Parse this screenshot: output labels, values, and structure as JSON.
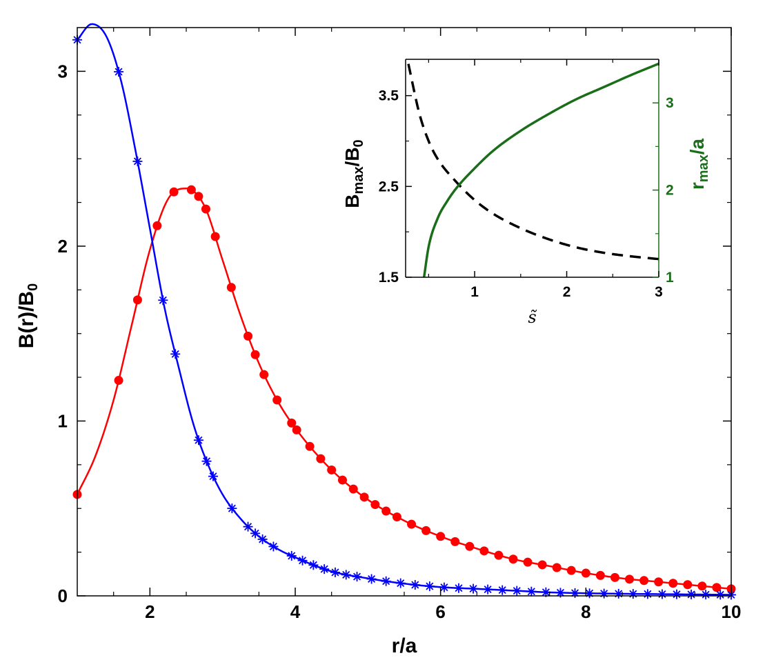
{
  "chart_data": [
    {
      "type": "line",
      "xlabel": "r/a",
      "ylabel": "B(r)/B",
      "ylabel_subscript": "0",
      "xlim": [
        1,
        10
      ],
      "ylim": [
        0,
        3.25
      ],
      "x_ticks": [
        2,
        4,
        6,
        8,
        10
      ],
      "y_ticks": [
        0,
        1,
        2,
        3
      ],
      "series": [
        {
          "color": "#ff0000",
          "marker": "circle",
          "x": [
            1.0,
            1.25,
            1.5,
            1.75,
            2.0,
            2.25,
            2.5,
            2.75,
            3.0,
            3.25,
            3.5,
            3.75,
            4.0,
            4.5,
            5.0,
            5.5,
            6.0,
            6.5,
            7.0,
            7.5,
            8.0,
            8.5,
            9.0,
            9.5,
            10.0
          ],
          "values": [
            0.58,
            0.8,
            1.12,
            1.55,
            1.98,
            2.27,
            2.33,
            2.23,
            1.92,
            1.6,
            1.33,
            1.12,
            0.96,
            0.72,
            0.55,
            0.43,
            0.34,
            0.27,
            0.21,
            0.17,
            0.13,
            0.1,
            0.08,
            0.06,
            0.04
          ],
          "marker_x": [
            1.0,
            1.57,
            1.83,
            2.1,
            2.33,
            2.57,
            2.67,
            2.77,
            2.9,
            3.12,
            3.35,
            3.45,
            3.57,
            3.75,
            3.95,
            4.02,
            4.2,
            4.35,
            4.5,
            4.65,
            4.8,
            4.95,
            5.1,
            5.25,
            5.4,
            5.6,
            5.8,
            6.0,
            6.2,
            6.4,
            6.6,
            6.8,
            7.0,
            7.2,
            7.4,
            7.6,
            7.8,
            8.0,
            8.2,
            8.4,
            8.6,
            8.8,
            9.0,
            9.2,
            9.4,
            9.6,
            9.8,
            10.0
          ]
        },
        {
          "color": "#0000ff",
          "marker": "asterisk",
          "x": [
            1.0,
            1.2,
            1.4,
            1.6,
            1.8,
            2.0,
            2.2,
            2.4,
            2.6,
            2.8,
            3.0,
            3.25,
            3.5,
            3.75,
            4.0,
            4.5,
            5.0,
            5.5,
            6.0,
            6.5,
            7.0,
            7.5,
            8.0,
            8.5,
            9.0,
            9.5,
            10.0
          ],
          "values": [
            3.18,
            3.27,
            3.2,
            2.95,
            2.55,
            2.1,
            1.65,
            1.3,
            0.98,
            0.75,
            0.58,
            0.44,
            0.34,
            0.27,
            0.22,
            0.14,
            0.1,
            0.07,
            0.05,
            0.04,
            0.03,
            0.02,
            0.015,
            0.012,
            0.01,
            0.008,
            0.006
          ],
          "marker_x": [
            1.0,
            1.57,
            1.83,
            2.18,
            2.35,
            2.67,
            2.78,
            2.87,
            3.13,
            3.35,
            3.45,
            3.55,
            3.7,
            3.95,
            4.1,
            4.25,
            4.4,
            4.55,
            4.7,
            4.85,
            5.05,
            5.25,
            5.45,
            5.65,
            5.85,
            6.05,
            6.25,
            6.45,
            6.65,
            6.85,
            7.05,
            7.25,
            7.45,
            7.65,
            7.85,
            8.05,
            8.25,
            8.45,
            8.65,
            8.85,
            9.05,
            9.25,
            9.45,
            9.65,
            9.85,
            10.0
          ]
        }
      ]
    },
    {
      "type": "line",
      "xlabel": "s̃",
      "ylabel_left": "B",
      "ylabel_left_sub1": "max",
      "ylabel_left_mid": "/B",
      "ylabel_left_sub2": "0",
      "ylabel_right": "r",
      "ylabel_right_sub": "max",
      "ylabel_right_tail": "/a",
      "xlim": [
        0.25,
        3
      ],
      "ylim_left": [
        1.5,
        3.9
      ],
      "ylim_right": [
        1,
        3.5
      ],
      "x_ticks": [
        1,
        2,
        3
      ],
      "y_ticks_left": [
        1.5,
        2.5,
        3.5
      ],
      "y_ticks_right": [
        1,
        2,
        3
      ],
      "right_axis_color": "#1a6e1a",
      "series": [
        {
          "axis": "left",
          "color": "#000000",
          "style": "dashed",
          "x": [
            0.28,
            0.4,
            0.5,
            0.6,
            0.8,
            1.0,
            1.2,
            1.5,
            1.8,
            2.1,
            2.4,
            2.7,
            3.0
          ],
          "values": [
            3.85,
            3.3,
            3.0,
            2.8,
            2.55,
            2.35,
            2.2,
            2.04,
            1.92,
            1.83,
            1.77,
            1.73,
            1.7
          ]
        },
        {
          "axis": "right",
          "color": "#1a6e1a",
          "style": "solid",
          "x": [
            0.45,
            0.5,
            0.6,
            0.7,
            0.8,
            1.0,
            1.2,
            1.5,
            1.8,
            2.1,
            2.4,
            2.7,
            3.0
          ],
          "values": [
            1.0,
            1.35,
            1.68,
            1.87,
            2.02,
            2.25,
            2.45,
            2.68,
            2.87,
            3.04,
            3.18,
            3.32,
            3.45
          ]
        }
      ]
    }
  ]
}
